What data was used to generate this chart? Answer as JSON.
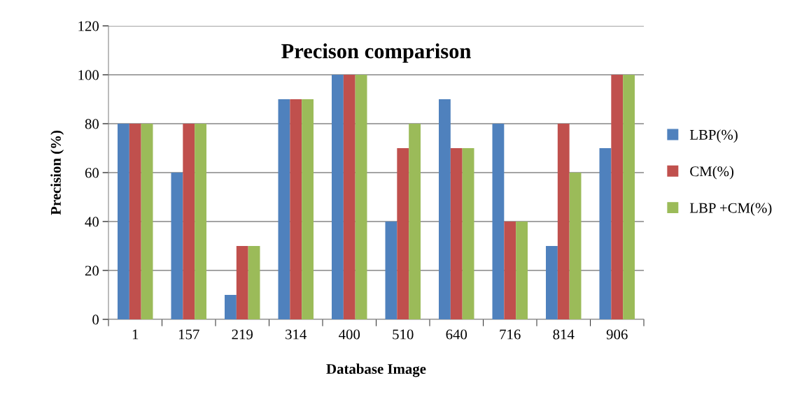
{
  "chart_data": {
    "type": "bar",
    "title": "Precison comparison",
    "xlabel": "Database Image",
    "ylabel": "Precision (%)",
    "categories": [
      "1",
      "157",
      "219",
      "314",
      "400",
      "510",
      "640",
      "716",
      "814",
      "906"
    ],
    "series": [
      {
        "name": "LBP(%)",
        "color": "#4f81bd",
        "values": [
          80,
          60,
          10,
          90,
          100,
          40,
          90,
          80,
          30,
          70
        ]
      },
      {
        "name": "CM(%)",
        "color": "#c0504d",
        "values": [
          80,
          80,
          30,
          90,
          100,
          70,
          70,
          40,
          80,
          100
        ]
      },
      {
        "name": "LBP +CM(%)",
        "color": "#9bbb59",
        "values": [
          80,
          80,
          30,
          90,
          100,
          80,
          70,
          40,
          60,
          100
        ]
      }
    ],
    "ylim": [
      0,
      120
    ],
    "yticks": [
      0,
      20,
      40,
      60,
      80,
      100,
      120
    ],
    "grid": "y",
    "legend": "right"
  }
}
